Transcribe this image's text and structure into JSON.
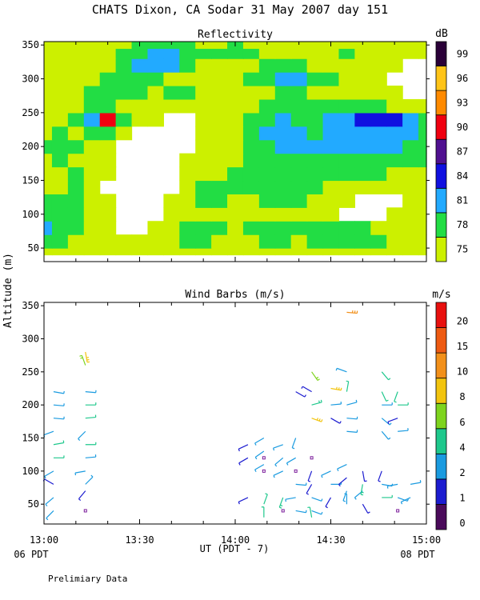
{
  "chart_data": [
    {
      "type": "heatmap",
      "title": "CHATS Dixon, CA  Sodar  31 May 2007  day 151",
      "subtitle": "Reflectivity",
      "ylabel": "Altitude (m)",
      "xlabel": "UT  (PDT - 7)",
      "colorbar_unit": "dB",
      "x_ticks": [
        "13:00",
        "13:30",
        "14:00",
        "14:30",
        "15:00"
      ],
      "y_ticks": [
        50,
        100,
        150,
        200,
        250,
        300,
        350
      ],
      "ylim": [
        30,
        355
      ],
      "xlim_minutes": [
        0,
        120
      ],
      "levels": [
        75,
        78,
        81,
        84,
        87,
        90,
        93,
        96,
        99
      ],
      "level_colors": [
        "#ccf000",
        "#22dd44",
        "#22aaff",
        "#1010e0",
        "#501090",
        "#f00010",
        "#ff8a00",
        "#ffc418",
        "#2a0038"
      ],
      "x_minutes": [
        0,
        5,
        10,
        15,
        20,
        25,
        30,
        35,
        40,
        45,
        50,
        55,
        60,
        65,
        70,
        75,
        80,
        85,
        90,
        95,
        100,
        105,
        110,
        115,
        120
      ],
      "altitudes": [
        40,
        60,
        80,
        100,
        120,
        140,
        160,
        180,
        200,
        220,
        240,
        260,
        280,
        300,
        320,
        340,
        350
      ],
      "grid": [
        [
          76,
          77,
          77,
          76,
          76,
          76,
          76,
          77,
          76,
          77,
          77,
          76,
          76,
          76,
          77,
          76,
          76,
          77,
          76,
          76,
          76,
          77,
          76,
          76,
          76
        ],
        [
          80,
          79,
          77,
          76,
          76,
          76,
          76,
          77,
          77,
          78,
          78,
          77,
          76,
          77,
          78,
          78,
          77,
          78,
          78,
          78,
          78,
          78,
          77,
          77,
          76
        ],
        [
          82,
          80,
          78,
          76,
          75,
          74,
          74,
          75,
          77,
          78,
          78,
          78,
          76,
          78,
          79,
          79,
          78,
          79,
          79,
          78,
          78,
          77,
          77,
          77,
          76
        ],
        [
          80,
          79,
          78,
          77,
          75,
          74,
          73,
          74,
          76,
          77,
          77,
          76,
          75,
          76,
          77,
          77,
          77,
          76,
          75,
          74,
          73,
          74,
          76,
          77,
          76
        ],
        [
          78,
          78,
          78,
          77,
          75,
          73,
          72,
          73,
          75,
          77,
          78,
          78,
          77,
          77,
          78,
          78,
          78,
          77,
          76,
          75,
          74,
          73,
          74,
          76,
          76
        ],
        [
          76,
          77,
          78,
          77,
          74,
          72,
          71,
          72,
          74,
          77,
          78,
          79,
          78,
          78,
          78,
          78,
          78,
          78,
          77,
          77,
          76,
          75,
          76,
          77,
          76
        ],
        [
          76,
          77,
          78,
          77,
          75,
          73,
          72,
          73,
          74,
          75,
          76,
          77,
          78,
          78,
          79,
          79,
          79,
          78,
          78,
          78,
          78,
          78,
          77,
          77,
          76
        ],
        [
          77,
          78,
          77,
          76,
          75,
          74,
          73,
          74,
          74,
          75,
          76,
          77,
          77,
          78,
          79,
          80,
          79,
          79,
          80,
          80,
          80,
          80,
          80,
          79,
          78
        ],
        [
          78,
          79,
          78,
          77,
          76,
          74,
          73,
          73,
          73,
          74,
          75,
          76,
          77,
          78,
          80,
          81,
          81,
          81,
          82,
          82,
          82,
          82,
          82,
          80,
          78
        ],
        [
          77,
          78,
          77,
          78,
          78,
          76,
          74,
          74,
          73,
          74,
          75,
          76,
          77,
          79,
          81,
          82,
          81,
          80,
          81,
          82,
          82,
          83,
          83,
          81,
          78
        ],
        [
          76,
          77,
          78,
          82,
          92,
          78,
          75,
          75,
          73,
          74,
          75,
          76,
          77,
          78,
          80,
          81,
          80,
          80,
          81,
          82,
          84,
          86,
          84,
          81,
          78
        ],
        [
          76,
          76,
          77,
          78,
          78,
          76,
          75,
          76,
          77,
          77,
          76,
          75,
          75,
          77,
          78,
          78,
          78,
          78,
          78,
          79,
          79,
          78,
          77,
          76,
          76
        ],
        [
          76,
          76,
          77,
          78,
          79,
          80,
          78,
          77,
          78,
          78,
          77,
          76,
          76,
          76,
          77,
          78,
          78,
          77,
          77,
          77,
          76,
          75,
          75,
          74,
          74
        ],
        [
          76,
          76,
          76,
          77,
          78,
          79,
          80,
          79,
          77,
          76,
          76,
          76,
          77,
          78,
          79,
          81,
          82,
          80,
          78,
          77,
          76,
          75,
          74,
          74,
          74
        ],
        [
          76,
          76,
          76,
          77,
          77,
          78,
          81,
          82,
          81,
          78,
          77,
          76,
          76,
          77,
          78,
          78,
          78,
          77,
          77,
          76,
          76,
          75,
          75,
          74,
          74
        ],
        [
          75,
          75,
          76,
          76,
          77,
          78,
          80,
          82,
          82,
          79,
          78,
          78,
          79,
          78,
          77,
          77,
          76,
          76,
          77,
          78,
          77,
          76,
          76,
          75,
          75
        ],
        [
          75,
          75,
          76,
          76,
          77,
          77,
          78,
          79,
          79,
          78,
          77,
          77,
          78,
          77,
          76,
          76,
          75,
          76,
          76,
          77,
          76,
          76,
          75,
          75,
          75
        ]
      ]
    },
    {
      "type": "scatter",
      "subtitle": "Wind Barbs (m/s)",
      "ylabel": "Altitude (m)",
      "xlabel": "UT  (PDT - 7)",
      "colorbar_unit": "m/s",
      "x_ticks": [
        "13:00",
        "13:30",
        "14:00",
        "14:30",
        "15:00"
      ],
      "y_ticks": [
        50,
        100,
        150,
        200,
        250,
        300,
        350
      ],
      "ylim": [
        20,
        355
      ],
      "speed_levels": [
        0,
        1,
        2,
        4,
        6,
        8,
        10,
        15,
        20
      ],
      "speed_colors": [
        "#4a0a5a",
        "#1c1cd0",
        "#1a9be0",
        "#1ec88c",
        "#7ed41e",
        "#f2c40e",
        "#f2901a",
        "#ee5a12",
        "#e8100e"
      ],
      "barb_columns_minutes": [
        3,
        13,
        64,
        69,
        74,
        79,
        84,
        90,
        95,
        100,
        106,
        111,
        115
      ],
      "barbs": [
        [
          3,
          40,
          2,
          225
        ],
        [
          3,
          60,
          2,
          230
        ],
        [
          3,
          80,
          1,
          300
        ],
        [
          3,
          100,
          2,
          240
        ],
        [
          3,
          120,
          4,
          90
        ],
        [
          3,
          140,
          4,
          80
        ],
        [
          3,
          160,
          3,
          250
        ],
        [
          3,
          180,
          3,
          95
        ],
        [
          3,
          200,
          3,
          95
        ],
        [
          3,
          220,
          2,
          100
        ],
        [
          13,
          40,
          0,
          0
        ],
        [
          13,
          70,
          1,
          220
        ],
        [
          13,
          80,
          2,
          45
        ],
        [
          13,
          100,
          2,
          260
        ],
        [
          13,
          120,
          3,
          85
        ],
        [
          13,
          140,
          4,
          90
        ],
        [
          13,
          160,
          3,
          225
        ],
        [
          13,
          180,
          4,
          85
        ],
        [
          13,
          200,
          4,
          90
        ],
        [
          13,
          220,
          3,
          95
        ],
        [
          13,
          260,
          6,
          340
        ],
        [
          13,
          280,
          8,
          170
        ],
        [
          64,
          60,
          1,
          245
        ],
        [
          64,
          120,
          1,
          240
        ],
        [
          64,
          140,
          1,
          245
        ],
        [
          69,
          110,
          2,
          240
        ],
        [
          69,
          130,
          2,
          235
        ],
        [
          69,
          150,
          3,
          240
        ],
        [
          69,
          120,
          0,
          0
        ],
        [
          69,
          100,
          0,
          0
        ],
        [
          69,
          30,
          4,
          0
        ],
        [
          69,
          50,
          4,
          20
        ],
        [
          75,
          40,
          0,
          0
        ],
        [
          75,
          60,
          5,
          200
        ],
        [
          75,
          100,
          2,
          245
        ],
        [
          75,
          120,
          2,
          230
        ],
        [
          75,
          140,
          3,
          250
        ],
        [
          79,
          40,
          3,
          100
        ],
        [
          79,
          60,
          3,
          260
        ],
        [
          79,
          80,
          3,
          95
        ],
        [
          79,
          100,
          0,
          0
        ],
        [
          79,
          120,
          2,
          240
        ],
        [
          79,
          150,
          2,
          200
        ],
        [
          79,
          220,
          1,
          120
        ],
        [
          84,
          40,
          3,
          110
        ],
        [
          84,
          60,
          2,
          110
        ],
        [
          84,
          80,
          1,
          210
        ],
        [
          84,
          100,
          1,
          200
        ],
        [
          84,
          120,
          0,
          0
        ],
        [
          84,
          30,
          4,
          350
        ],
        [
          84,
          180,
          9,
          110
        ],
        [
          84,
          200,
          5,
          75
        ],
        [
          84,
          220,
          1,
          300
        ],
        [
          84,
          250,
          6,
          145
        ],
        [
          90,
          60,
          1,
          210
        ],
        [
          90,
          80,
          3,
          90
        ],
        [
          90,
          100,
          2,
          245
        ],
        [
          90,
          180,
          1,
          120
        ],
        [
          90,
          200,
          3,
          85
        ],
        [
          90,
          225,
          9,
          100
        ],
        [
          95,
          50,
          3,
          0
        ],
        [
          95,
          70,
          3,
          200
        ],
        [
          95,
          90,
          1,
          230
        ],
        [
          95,
          110,
          3,
          245
        ],
        [
          95,
          160,
          3,
          95
        ],
        [
          95,
          180,
          3,
          95
        ],
        [
          95,
          200,
          2,
          75
        ],
        [
          95,
          220,
          4,
          10
        ],
        [
          95,
          250,
          3,
          290
        ],
        [
          95,
          340,
          10,
          95
        ],
        [
          100,
          50,
          1,
          150
        ],
        [
          100,
          70,
          3,
          230
        ],
        [
          100,
          80,
          5,
          190
        ],
        [
          100,
          100,
          1,
          170
        ],
        [
          106,
          60,
          4,
          90
        ],
        [
          106,
          80,
          2,
          100
        ],
        [
          106,
          100,
          1,
          200
        ],
        [
          106,
          160,
          2,
          140
        ],
        [
          106,
          180,
          3,
          130
        ],
        [
          106,
          200,
          3,
          90
        ],
        [
          106,
          220,
          4,
          155
        ],
        [
          106,
          250,
          4,
          140
        ],
        [
          111,
          40,
          0,
          0
        ],
        [
          111,
          60,
          2,
          110
        ],
        [
          111,
          80,
          2,
          260
        ],
        [
          111,
          160,
          3,
          85
        ],
        [
          111,
          180,
          1,
          250
        ],
        [
          111,
          200,
          4,
          90
        ],
        [
          111,
          220,
          4,
          200
        ],
        [
          115,
          60,
          2,
          245
        ],
        [
          115,
          80,
          3,
          80
        ]
      ]
    }
  ],
  "labels": {
    "start_local": "06 PDT",
    "end_local": "08 PDT",
    "note": "Prelimiary Data"
  }
}
